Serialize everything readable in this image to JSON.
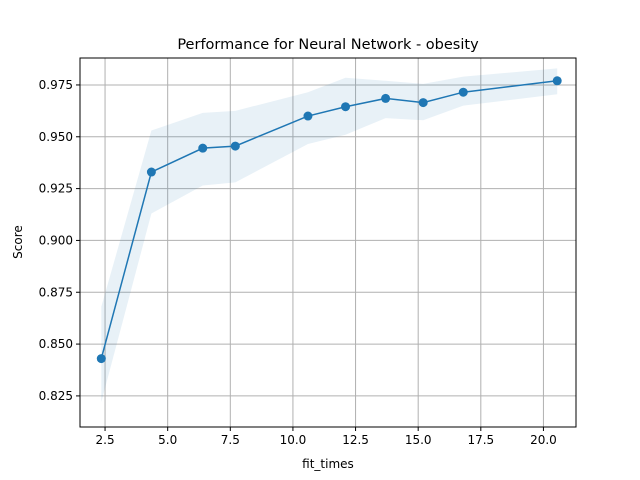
{
  "chart_data": {
    "type": "line",
    "title": "Performance for Neural Network - obesity",
    "xlabel": "fit_times",
    "ylabel": "Score",
    "xlim": [
      1.5,
      21.3
    ],
    "ylim": [
      0.81,
      0.988
    ],
    "grid": true,
    "x_ticks": [
      2.5,
      5.0,
      7.5,
      10.0,
      12.5,
      15.0,
      17.5,
      20.0
    ],
    "x_tick_labels": [
      "2.5",
      "5.0",
      "7.5",
      "10.0",
      "12.5",
      "15.0",
      "17.5",
      "20.0"
    ],
    "y_ticks": [
      0.825,
      0.85,
      0.875,
      0.9,
      0.925,
      0.95,
      0.975
    ],
    "y_tick_labels": [
      "0.825",
      "0.850",
      "0.875",
      "0.900",
      "0.925",
      "0.950",
      "0.975"
    ],
    "series": [
      {
        "x": [
          2.35,
          4.35,
          6.4,
          7.7,
          10.6,
          12.1,
          13.7,
          15.2,
          16.8,
          20.55
        ],
        "y": [
          0.843,
          0.933,
          0.9445,
          0.9455,
          0.96,
          0.9645,
          0.9685,
          0.9665,
          0.9715,
          0.977
        ],
        "lower": [
          0.822,
          0.913,
          0.9265,
          0.928,
          0.9465,
          0.951,
          0.959,
          0.958,
          0.965,
          0.9705
        ],
        "upper": [
          0.868,
          0.953,
          0.9615,
          0.9625,
          0.9715,
          0.9785,
          0.977,
          0.9755,
          0.979,
          0.983
        ],
        "color": "#1f77b4",
        "band_color": "#1f77b4"
      }
    ]
  }
}
